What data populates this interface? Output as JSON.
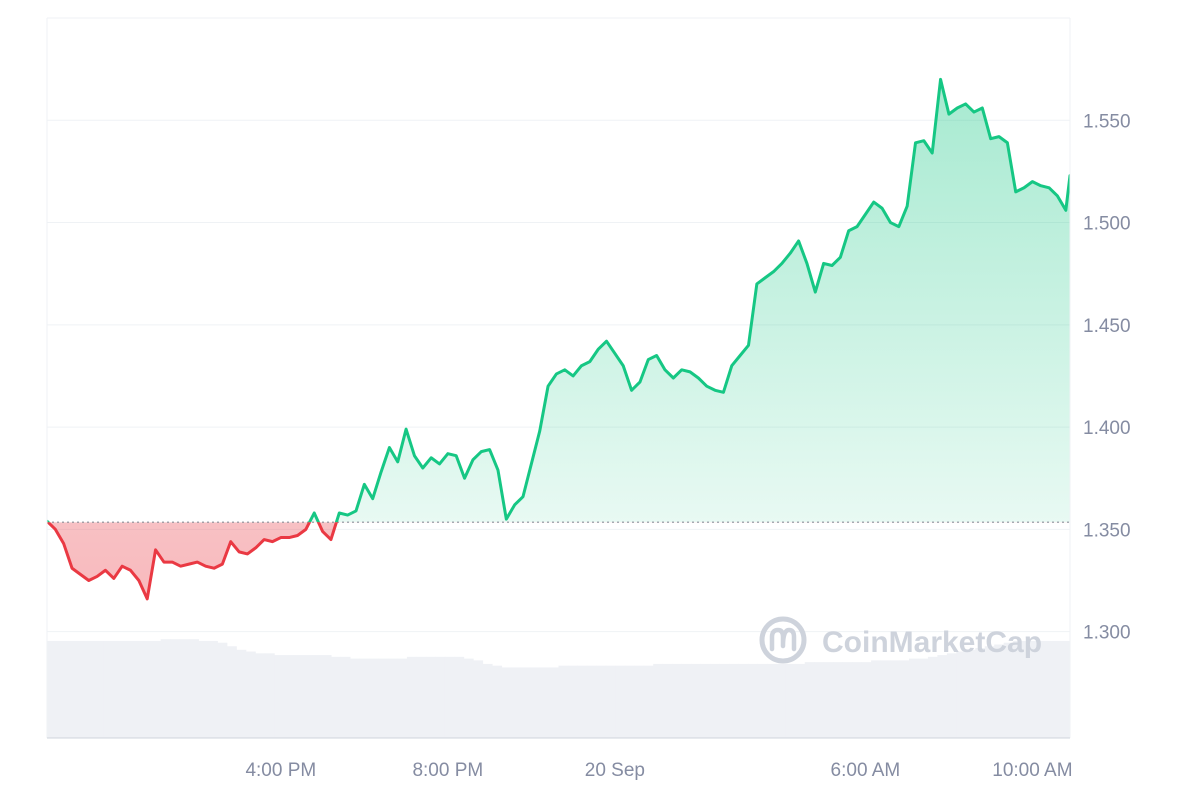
{
  "chart_data": {
    "type": "area",
    "watermark": "CoinMarketCap",
    "baseline": 1.3535,
    "ylim": [
      1.248,
      1.6
    ],
    "yticks": [
      1.3,
      1.35,
      1.4,
      1.45,
      1.5,
      1.55
    ],
    "ytick_labels": [
      "1.300",
      "1.350",
      "1.400",
      "1.450",
      "1.500",
      "1.550"
    ],
    "xlim": [
      0,
      24.5
    ],
    "xticks": [
      {
        "x": 5.6,
        "label": "4:00 PM"
      },
      {
        "x": 9.6,
        "label": "8:00 PM"
      },
      {
        "x": 13.6,
        "label": "20 Sep"
      },
      {
        "x": 19.6,
        "label": "6:00 AM"
      },
      {
        "x": 23.6,
        "label": "10:00 AM"
      }
    ],
    "colors": {
      "up": "#16c784",
      "down": "#ea3943",
      "grid": "#eff2f5",
      "volume": "#eff1f5"
    },
    "price": {
      "x": [
        0,
        0.2,
        0.4,
        0.6,
        0.8,
        1.0,
        1.2,
        1.4,
        1.6,
        1.8,
        2.0,
        2.2,
        2.4,
        2.6,
        2.8,
        3.0,
        3.2,
        3.4,
        3.6,
        3.8,
        4.0,
        4.2,
        4.4,
        4.6,
        4.8,
        5.0,
        5.2,
        5.4,
        5.6,
        5.8,
        6.0,
        6.2,
        6.4,
        6.6,
        6.8,
        7.0,
        7.2,
        7.4,
        7.6,
        7.8,
        8.0,
        8.2,
        8.4,
        8.6,
        8.8,
        9.0,
        9.2,
        9.4,
        9.6,
        9.8,
        10.0,
        10.2,
        10.4,
        10.6,
        10.8,
        11.0,
        11.2,
        11.4,
        11.6,
        11.8,
        12.0,
        12.2,
        12.4,
        12.6,
        12.8,
        13.0,
        13.2,
        13.4,
        13.6,
        13.8,
        14.0,
        14.2,
        14.4,
        14.6,
        14.8,
        15.0,
        15.2,
        15.4,
        15.6,
        15.8,
        16.0,
        16.2,
        16.4,
        16.6,
        16.8,
        17.0,
        17.2,
        17.4,
        17.6,
        17.8,
        18.0,
        18.2,
        18.4,
        18.6,
        18.8,
        19.0,
        19.2,
        19.4,
        19.6,
        19.8,
        20.0,
        20.2,
        20.4,
        20.6,
        20.8,
        21.0,
        21.2,
        21.4,
        21.6,
        21.8,
        22.0,
        22.2,
        22.4,
        22.6,
        22.8,
        23.0,
        23.2,
        23.4,
        23.6,
        23.8,
        24.0,
        24.2,
        24.4,
        24.5
      ],
      "y": [
        1.354,
        1.35,
        1.343,
        1.331,
        1.328,
        1.325,
        1.327,
        1.33,
        1.326,
        1.332,
        1.33,
        1.325,
        1.316,
        1.34,
        1.334,
        1.334,
        1.332,
        1.333,
        1.334,
        1.332,
        1.331,
        1.333,
        1.344,
        1.339,
        1.338,
        1.341,
        1.345,
        1.344,
        1.346,
        1.346,
        1.347,
        1.35,
        1.358,
        1.349,
        1.345,
        1.358,
        1.357,
        1.359,
        1.372,
        1.365,
        1.378,
        1.39,
        1.383,
        1.399,
        1.386,
        1.38,
        1.385,
        1.382,
        1.387,
        1.386,
        1.375,
        1.384,
        1.388,
        1.389,
        1.379,
        1.355,
        1.362,
        1.366,
        1.382,
        1.398,
        1.42,
        1.426,
        1.428,
        1.425,
        1.43,
        1.432,
        1.438,
        1.442,
        1.436,
        1.43,
        1.418,
        1.422,
        1.433,
        1.435,
        1.428,
        1.424,
        1.428,
        1.427,
        1.424,
        1.42,
        1.418,
        1.417,
        1.43,
        1.435,
        1.44,
        1.47,
        1.473,
        1.476,
        1.48,
        1.485,
        1.491,
        1.48,
        1.466,
        1.48,
        1.479,
        1.483,
        1.496,
        1.498,
        1.504,
        1.51,
        1.507,
        1.5,
        1.498,
        1.508,
        1.539,
        1.54,
        1.534,
        1.57,
        1.553,
        1.556,
        1.558,
        1.554,
        1.556,
        1.541,
        1.542,
        1.539,
        1.515,
        1.517,
        1.52,
        1.518,
        1.517,
        1.513,
        1.506,
        1.523
      ]
    },
    "volume": [
      0.55,
      0.55,
      0.55,
      0.55,
      0.55,
      0.55,
      0.55,
      0.55,
      0.55,
      0.55,
      0.55,
      0.55,
      0.56,
      0.56,
      0.56,
      0.56,
      0.55,
      0.55,
      0.54,
      0.52,
      0.5,
      0.49,
      0.48,
      0.48,
      0.47,
      0.47,
      0.47,
      0.47,
      0.47,
      0.47,
      0.46,
      0.46,
      0.45,
      0.45,
      0.45,
      0.45,
      0.45,
      0.45,
      0.46,
      0.46,
      0.46,
      0.46,
      0.46,
      0.46,
      0.45,
      0.44,
      0.42,
      0.41,
      0.4,
      0.4,
      0.4,
      0.4,
      0.4,
      0.4,
      0.41,
      0.41,
      0.41,
      0.41,
      0.41,
      0.41,
      0.41,
      0.41,
      0.41,
      0.41,
      0.42,
      0.42,
      0.42,
      0.42,
      0.42,
      0.42,
      0.42,
      0.42,
      0.42,
      0.42,
      0.42,
      0.42,
      0.42,
      0.42,
      0.42,
      0.42,
      0.43,
      0.43,
      0.43,
      0.43,
      0.43,
      0.43,
      0.43,
      0.44,
      0.44,
      0.44,
      0.44,
      0.45,
      0.45,
      0.46,
      0.47,
      0.48,
      0.49,
      0.5,
      0.51,
      0.52,
      0.53,
      0.54,
      0.55,
      0.55,
      0.55,
      0.55,
      0.55,
      0.55
    ]
  }
}
